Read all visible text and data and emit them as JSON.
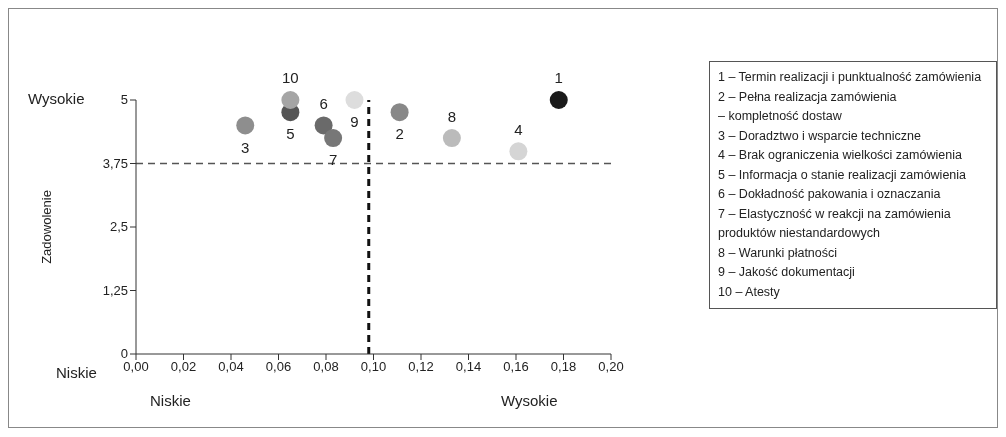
{
  "chart_data": {
    "type": "scatter",
    "ylabel": "Zadowolenie",
    "xlim": [
      0,
      0.2
    ],
    "ylim": [
      0,
      5
    ],
    "xticks": [
      {
        "value": 0,
        "label": "0,00"
      },
      {
        "value": 0.02,
        "label": "0,02"
      },
      {
        "value": 0.04,
        "label": "0,04"
      },
      {
        "value": 0.06,
        "label": "0,06"
      },
      {
        "value": 0.08,
        "label": "0,08"
      },
      {
        "value": 0.1,
        "label": "0,10"
      },
      {
        "value": 0.12,
        "label": "0,12"
      },
      {
        "value": 0.14,
        "label": "0,14"
      },
      {
        "value": 0.16,
        "label": "0,16"
      },
      {
        "value": 0.18,
        "label": "0,18"
      },
      {
        "value": 0.2,
        "label": "0,20"
      }
    ],
    "yticks": [
      0,
      {
        "value": 1.25,
        "label": "1,25"
      },
      {
        "value": 2.5,
        "label": "2,5"
      },
      {
        "value": 3.75,
        "label": "3,75"
      },
      5
    ],
    "marker": "circle",
    "series": [
      {
        "name": "1",
        "color": "#1a1a1a",
        "x": [
          0.178
        ],
        "values": [
          5
        ]
      },
      {
        "name": "2",
        "color": "#888888",
        "x": [
          0.111
        ],
        "values": [
          4.76
        ]
      },
      {
        "name": "3",
        "color": "#8e8e8e",
        "x": [
          0.046
        ],
        "values": [
          4.5
        ]
      },
      {
        "name": "4",
        "color": "#d5d5d5",
        "x": [
          0.161
        ],
        "values": [
          3.99
        ]
      },
      {
        "name": "5",
        "color": "#555555",
        "x": [
          0.065
        ],
        "values": [
          4.76
        ]
      },
      {
        "name": "6",
        "color": "#6a6a6a",
        "x": [
          0.079
        ],
        "values": [
          4.5
        ]
      },
      {
        "name": "7",
        "color": "#777777",
        "x": [
          0.083
        ],
        "values": [
          4.25
        ]
      },
      {
        "name": "8",
        "color": "#bbbbbb",
        "x": [
          0.133
        ],
        "values": [
          4.25
        ]
      },
      {
        "name": "9",
        "color": "#dddddd",
        "x": [
          0.092
        ],
        "values": [
          5
        ]
      },
      {
        "name": "10",
        "color": "#a5a5a5",
        "x": [
          0.065
        ],
        "values": [
          5
        ]
      }
    ],
    "ref_lines": [
      {
        "axis": "y",
        "value": 3.75,
        "color": "#555555",
        "line_style": "dashed"
      },
      {
        "axis": "x",
        "value": 0.098,
        "color": "#111111",
        "line_style": "dashed"
      }
    ],
    "annotations": [
      "Niskie",
      "Wysokie",
      "Niskie",
      "Wysokie",
      "1 – Termin realizacji i punktualność zamówienia",
      "2 – Pełna realizacja zamówienia\n– kompletność dostaw",
      "3 – Doradztwo i wsparcie techniczne",
      "4 – Brak ograniczenia wielkości zamówienia",
      "5 – Informacja o stanie realizacji zamówienia",
      "6 – Dokładność pakowania i oznaczania",
      "7 – Elastyczność w reakcji na zamówienia\nproduktów niestandardowych",
      "8 – Warunki płatności",
      "9 – Jakość dokumentacji",
      "10 – Atesty"
    ]
  }
}
